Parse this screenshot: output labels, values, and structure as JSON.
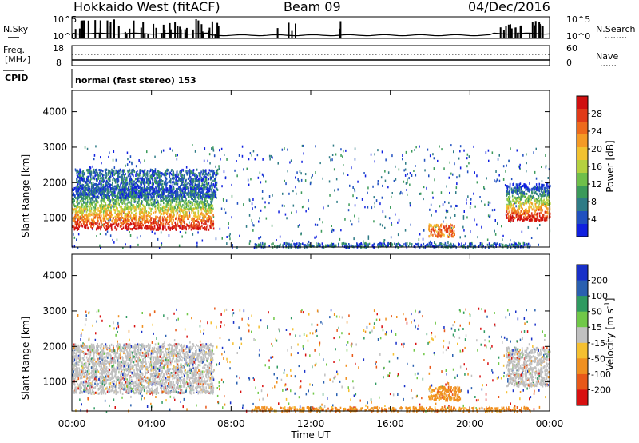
{
  "header": {
    "station": "Hokkaido West (fitACF)",
    "beam": "Beam 09",
    "date": "04/Dec/2016"
  },
  "noise_panel": {
    "left_label": "N.Sky",
    "right_label": "N.Search",
    "ticks": [
      "10^5",
      "10^0"
    ]
  },
  "freq_panel": {
    "left_label_1": "Freq.",
    "left_label_2": "[MHz]",
    "left_ticks": [
      "18",
      "8"
    ],
    "right_label": "Nave",
    "right_ticks": [
      "60",
      "0"
    ]
  },
  "cpid": {
    "label": "CPID",
    "mode": "normal (fast stereo) 153"
  },
  "xaxis": {
    "label": "Time UT",
    "ticks": [
      "00:00",
      "04:00",
      "08:00",
      "12:00",
      "16:00",
      "20:00",
      "00:00"
    ]
  },
  "chart_data": [
    {
      "type": "heatmap",
      "name": "Power",
      "ylabel": "Slant Range [km]",
      "yticks": [
        "1000",
        "2000",
        "3000",
        "4000"
      ],
      "ylim": [
        180,
        4600
      ],
      "xlim": [
        0,
        24
      ],
      "colorbar": {
        "label": "Power [dB]",
        "ticks": [
          "4",
          "8",
          "12",
          "16",
          "20",
          "24",
          "28"
        ],
        "colors": [
          "#1020e0",
          "#2050c0",
          "#2e7b86",
          "#3b9a5a",
          "#6fbf4a",
          "#b5d13f",
          "#f2c230",
          "#f59a25",
          "#ee6a1c",
          "#e03a18",
          "#d01010"
        ]
      },
      "regions": [
        {
          "t0": 0.0,
          "t1": 7.1,
          "r0": 700,
          "r1": 1900,
          "level": "high"
        },
        {
          "t0": 0.2,
          "t1": 7.3,
          "r0": 1600,
          "r1": 2400,
          "level": "low"
        },
        {
          "t0": 17.9,
          "t1": 19.2,
          "r0": 500,
          "r1": 850,
          "level": "mid"
        },
        {
          "t0": 21.8,
          "t1": 24.0,
          "r0": 950,
          "r1": 2000,
          "level": "high"
        },
        {
          "t0": 9.0,
          "t1": 23.0,
          "r0": 200,
          "r1": 320,
          "level": "low"
        }
      ]
    },
    {
      "type": "heatmap",
      "name": "Velocity",
      "ylabel": "Slant Range [km]",
      "yticks": [
        "1000",
        "2000",
        "3000",
        "4000"
      ],
      "ylim": [
        180,
        4600
      ],
      "xlim": [
        0,
        24
      ],
      "colorbar": {
        "label": "Velocity [m s^-1]",
        "ticks": [
          "200",
          "100",
          "50",
          "15",
          "-15",
          "-50",
          "-100",
          "-200"
        ],
        "colors": [
          "#1830c8",
          "#2a60b0",
          "#2f9a60",
          "#70c848",
          "#c0c0c0",
          "#f5c030",
          "#f09020",
          "#e85818",
          "#d81010"
        ]
      },
      "regions": [
        {
          "t0": 0.0,
          "t1": 7.1,
          "r0": 700,
          "r1": 2100,
          "level": "gray"
        },
        {
          "t0": 17.9,
          "t1": 19.5,
          "r0": 500,
          "r1": 900,
          "level": "orange"
        },
        {
          "t0": 21.8,
          "t1": 24.0,
          "r0": 900,
          "r1": 2000,
          "level": "gray"
        },
        {
          "t0": 9.0,
          "t1": 23.0,
          "r0": 200,
          "r1": 320,
          "level": "orange"
        }
      ]
    }
  ]
}
